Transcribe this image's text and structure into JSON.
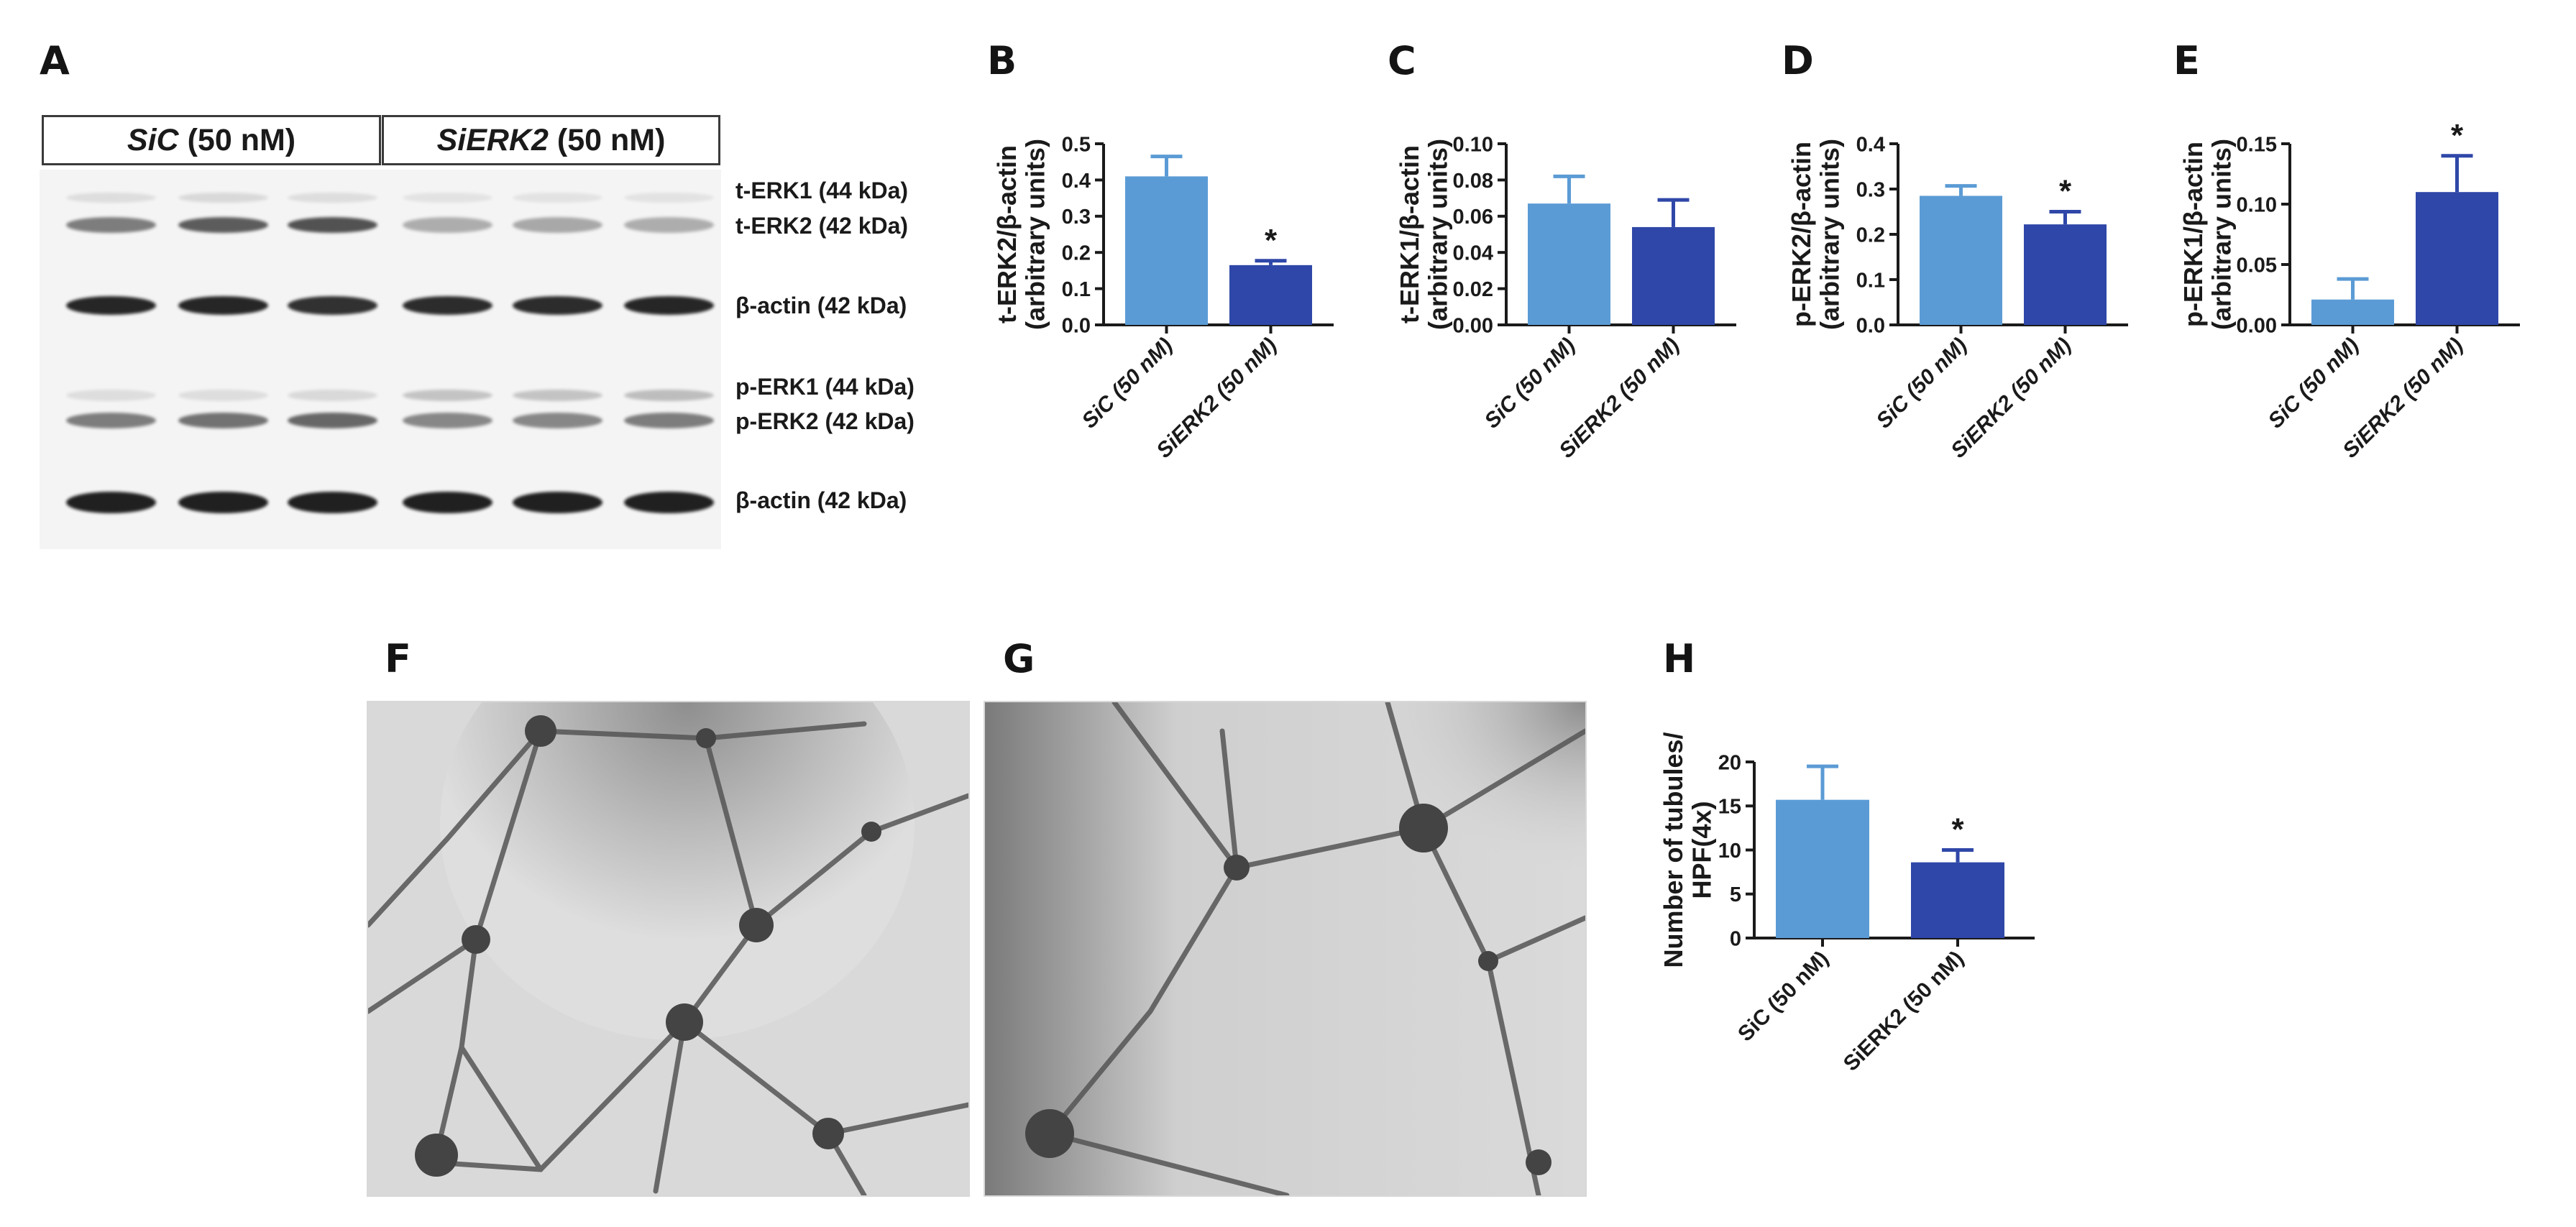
{
  "panel_letters": {
    "A": "A",
    "B": "B",
    "C": "C",
    "D": "D",
    "E": "E",
    "F": "F",
    "G": "G",
    "H": "H"
  },
  "blot": {
    "header_left": {
      "italic": "SiC",
      "rest": "(50 nM)"
    },
    "header_right": {
      "italic": "SiERK2",
      "rest": "(50 nM)"
    },
    "band_labels": [
      "t-ERK1 (44 kDa)",
      "t-ERK2 (42 kDa)",
      "β-actin (42 kDa)",
      "p-ERK1 (44 kDa)",
      "p-ERK2 (42 kDa)",
      "β-actin (42 kDa)"
    ],
    "colors": {
      "band": "#1c1c1c",
      "membrane": "#f4f4f4"
    }
  },
  "chart_data": [
    {
      "type": "bar",
      "panel": "B",
      "categories": [
        "SiC (50 nM)",
        "SiERK2 (50 nM)"
      ],
      "values": [
        0.41,
        0.165
      ],
      "errors": [
        0.055,
        0.012
      ],
      "ylabel_line1": "t-ERK2/β-actin",
      "ylabel_line2": "(arbitrary units)",
      "ylim": [
        0,
        0.5
      ],
      "yticks": [
        "0.0",
        "0.1",
        "0.2",
        "0.3",
        "0.4",
        "0.5"
      ],
      "significance": [
        "",
        "*"
      ]
    },
    {
      "type": "bar",
      "panel": "C",
      "categories": [
        "SiC (50 nM)",
        "SiERK2 (50 nM)"
      ],
      "values": [
        0.067,
        0.054
      ],
      "errors": [
        0.015,
        0.015
      ],
      "ylabel_line1": "t-ERK1/β-actin",
      "ylabel_line2": "(arbitrary units)",
      "ylim": [
        0,
        0.1
      ],
      "yticks": [
        "0.00",
        "0.02",
        "0.04",
        "0.06",
        "0.08",
        "0.10"
      ],
      "significance": [
        "",
        ""
      ]
    },
    {
      "type": "bar",
      "panel": "D",
      "categories": [
        "SiC (50 nM)",
        "SiERK2 (50 nM)"
      ],
      "values": [
        0.285,
        0.222
      ],
      "errors": [
        0.022,
        0.028
      ],
      "ylabel_line1": "p-ERK2/β-actin",
      "ylabel_line2": "(arbitrary units)",
      "ylim": [
        0,
        0.4
      ],
      "yticks": [
        "0.0",
        "0.1",
        "0.2",
        "0.3",
        "0.4"
      ],
      "significance": [
        "",
        "*"
      ]
    },
    {
      "type": "bar",
      "panel": "E",
      "categories": [
        "SiC (50 nM)",
        "SiERK2 (50 nM)"
      ],
      "values": [
        0.021,
        0.11
      ],
      "errors": [
        0.017,
        0.03
      ],
      "ylabel_line1": "p-ERK1/β-actin",
      "ylabel_line2": "(arbitrary units)",
      "ylim": [
        0,
        0.15
      ],
      "yticks": [
        "0.00",
        "0.05",
        "0.10",
        "0.15"
      ],
      "significance": [
        "",
        "*"
      ]
    },
    {
      "type": "bar",
      "panel": "H",
      "categories": [
        "SiC (50 nM)",
        "SiERK2 (50 nM)"
      ],
      "values": [
        15.7,
        8.6
      ],
      "errors": [
        3.8,
        1.4
      ],
      "ylabel_line1": "Number of tubules/",
      "ylabel_line2": "HPF(4x)",
      "ylim": [
        0,
        20
      ],
      "yticks": [
        "0",
        "5",
        "10",
        "15",
        "20"
      ],
      "significance": [
        "",
        "*"
      ],
      "italic_categories": false
    }
  ],
  "colors": {
    "sic_bar": "#5b9bd5",
    "sierk2_bar": "#2f47a8",
    "axis": "#1a1a1a"
  }
}
